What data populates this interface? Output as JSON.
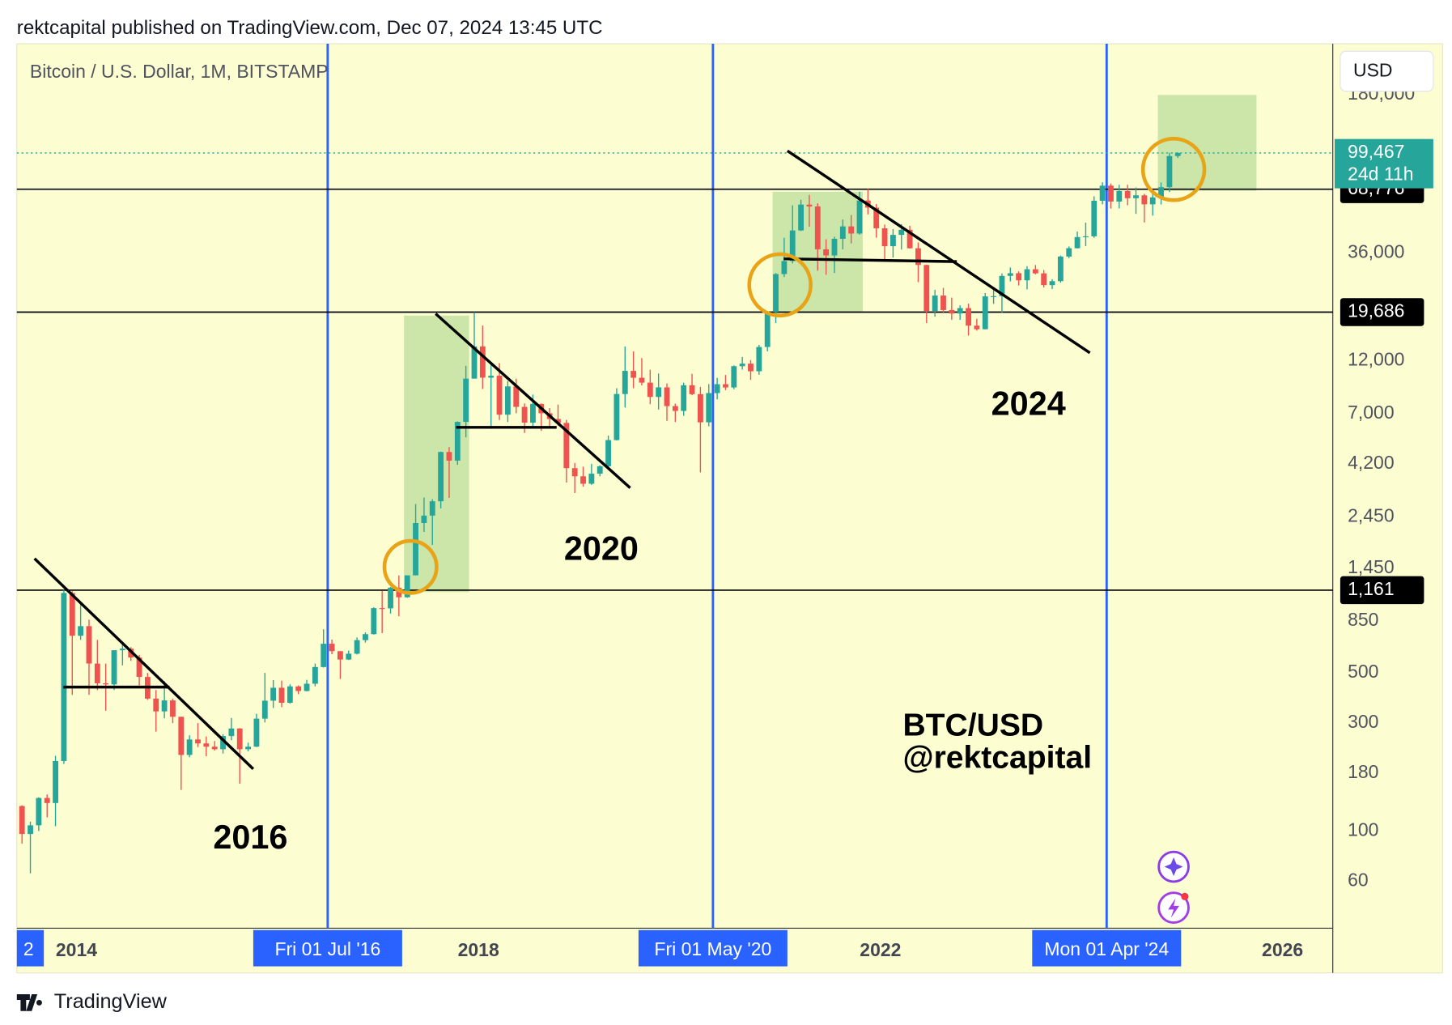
{
  "header": "rektcapital published on TradingView.com, Dec 07, 2024 13:45 UTC",
  "footer": "TradingView",
  "chart_data": {
    "type": "candlestick",
    "title": "Bitcoin / U.S. Dollar, 1M, BITSTAMP",
    "currency": "USD",
    "log_scale": true,
    "up_color": "#26a69a",
    "down_color": "#ef5350",
    "ylim": [
      37.2,
      302300
    ],
    "yticks": [
      {
        "value": 180000,
        "label": "180,000"
      },
      {
        "value": 36000,
        "label": "36,000"
      },
      {
        "value": 12000,
        "label": "12,000"
      },
      {
        "value": 7000,
        "label": "7,000"
      },
      {
        "value": 4200,
        "label": "4,200"
      },
      {
        "value": 2450,
        "label": "2,450"
      },
      {
        "value": 1450,
        "label": "1,450"
      },
      850,
      500,
      300,
      180,
      100,
      60
    ],
    "levels": [
      {
        "value": 68776,
        "label": "68,776"
      },
      {
        "value": 19686,
        "label": "19,686"
      },
      {
        "value": 1161,
        "label": "1,161"
      }
    ],
    "last_price": {
      "value": 99467,
      "label": "99,467",
      "countdown": "24d 11h"
    },
    "xlim": [
      2013.407,
      2026.5
    ],
    "xticks": [
      2014,
      2018,
      2022,
      2026
    ],
    "markers": [
      {
        "value": 2016.5,
        "label": "Fri 01 Jul '16"
      },
      {
        "value": 2020.333,
        "label": "Fri 01 May '20"
      },
      {
        "value": 2024.25,
        "label": "Mon 01 Apr '24"
      }
    ],
    "edge_label": "2",
    "annotations": [
      "2016",
      "2020",
      "2024",
      "BTC/USD",
      "@rektcapital"
    ],
    "x": [
      "2013-06",
      "2013-07",
      "2013-08",
      "2013-09",
      "2013-10",
      "2013-11",
      "2013-12",
      "2014-01",
      "2014-02",
      "2014-03",
      "2014-04",
      "2014-05",
      "2014-06",
      "2014-07",
      "2014-08",
      "2014-09",
      "2014-10",
      "2014-11",
      "2014-12",
      "2015-01",
      "2015-02",
      "2015-03",
      "2015-04",
      "2015-05",
      "2015-06",
      "2015-07",
      "2015-08",
      "2015-09",
      "2015-10",
      "2015-11",
      "2015-12",
      "2016-01",
      "2016-02",
      "2016-03",
      "2016-04",
      "2016-05",
      "2016-06",
      "2016-07",
      "2016-08",
      "2016-09",
      "2016-10",
      "2016-11",
      "2016-12",
      "2017-01",
      "2017-02",
      "2017-03",
      "2017-04",
      "2017-05",
      "2017-06",
      "2017-07",
      "2017-08",
      "2017-09",
      "2017-10",
      "2017-11",
      "2017-12",
      "2018-01",
      "2018-02",
      "2018-03",
      "2018-04",
      "2018-05",
      "2018-06",
      "2018-07",
      "2018-08",
      "2018-09",
      "2018-10",
      "2018-11",
      "2018-12",
      "2019-01",
      "2019-02",
      "2019-03",
      "2019-04",
      "2019-05",
      "2019-06",
      "2019-07",
      "2019-08",
      "2019-09",
      "2019-10",
      "2019-11",
      "2019-12",
      "2020-01",
      "2020-02",
      "2020-03",
      "2020-04",
      "2020-05",
      "2020-06",
      "2020-07",
      "2020-08",
      "2020-09",
      "2020-10",
      "2020-11",
      "2020-12",
      "2021-01",
      "2021-02",
      "2021-03",
      "2021-04",
      "2021-05",
      "2021-06",
      "2021-07",
      "2021-08",
      "2021-09",
      "2021-10",
      "2021-11",
      "2021-12",
      "2022-01",
      "2022-02",
      "2022-03",
      "2022-04",
      "2022-05",
      "2022-06",
      "2022-07",
      "2022-08",
      "2022-09",
      "2022-10",
      "2022-11",
      "2022-12",
      "2023-01",
      "2023-02",
      "2023-03",
      "2023-04",
      "2023-05",
      "2023-06",
      "2023-07",
      "2023-08",
      "2023-09",
      "2023-10",
      "2023-11",
      "2023-12",
      "2024-01",
      "2024-02",
      "2024-03",
      "2024-04",
      "2024-05",
      "2024-06",
      "2024-07",
      "2024-08",
      "2024-09",
      "2024-10",
      "2024-11",
      "2024-12"
    ],
    "ohlc": [
      [
        129,
        130,
        88,
        97
      ],
      [
        97,
        110,
        65,
        106
      ],
      [
        106,
        141,
        100,
        140
      ],
      [
        140,
        145,
        115,
        133
      ],
      [
        133,
        215,
        105,
        204
      ],
      [
        204,
        1163,
        198,
        1128
      ],
      [
        1128,
        1150,
        400,
        730
      ],
      [
        730,
        1020,
        700,
        805
      ],
      [
        805,
        860,
        400,
        550
      ],
      [
        550,
        700,
        420,
        450
      ],
      [
        450,
        550,
        340,
        445
      ],
      [
        445,
        630,
        420,
        630
      ],
      [
        630,
        680,
        540,
        640
      ],
      [
        640,
        650,
        565,
        585
      ],
      [
        585,
        600,
        440,
        480
      ],
      [
        480,
        500,
        380,
        385
      ],
      [
        385,
        420,
        275,
        338
      ],
      [
        338,
        460,
        315,
        378
      ],
      [
        378,
        385,
        300,
        320
      ],
      [
        320,
        320,
        152,
        217
      ],
      [
        217,
        265,
        212,
        254
      ],
      [
        254,
        300,
        235,
        244
      ],
      [
        244,
        262,
        214,
        236
      ],
      [
        236,
        250,
        227,
        230
      ],
      [
        230,
        268,
        220,
        263
      ],
      [
        263,
        316,
        252,
        284
      ],
      [
        284,
        285,
        162,
        230
      ],
      [
        230,
        246,
        225,
        236
      ],
      [
        236,
        330,
        235,
        314
      ],
      [
        314,
        500,
        302,
        377
      ],
      [
        377,
        465,
        350,
        430
      ],
      [
        430,
        462,
        353,
        369
      ],
      [
        369,
        445,
        366,
        436
      ],
      [
        436,
        440,
        403,
        416
      ],
      [
        416,
        466,
        414,
        448
      ],
      [
        448,
        550,
        436,
        531
      ],
      [
        531,
        780,
        528,
        673
      ],
      [
        673,
        702,
        605,
        624
      ],
      [
        624,
        624,
        470,
        573
      ],
      [
        573,
        628,
        570,
        608
      ],
      [
        608,
        718,
        603,
        698
      ],
      [
        698,
        756,
        681,
        742
      ],
      [
        742,
        975,
        739,
        967
      ],
      [
        967,
        1150,
        750,
        965
      ],
      [
        965,
        1200,
        915,
        1190
      ],
      [
        1190,
        1350,
        890,
        1080
      ],
      [
        1080,
        1350,
        1075,
        1350
      ],
      [
        1350,
        2790,
        1350,
        2300
      ],
      [
        2300,
        2980,
        2100,
        2480
      ],
      [
        2480,
        2930,
        1840,
        2870
      ],
      [
        2870,
        4760,
        2670,
        4740
      ],
      [
        4740,
        4980,
        2970,
        4340
      ],
      [
        4340,
        6470,
        4160,
        6440
      ],
      [
        6440,
        11400,
        5500,
        10000
      ],
      [
        10000,
        19666,
        10000,
        13880
      ],
      [
        13880,
        17170,
        9000,
        10100
      ],
      [
        10100,
        11790,
        6000,
        10300
      ],
      [
        10300,
        11700,
        6560,
        6930
      ],
      [
        6930,
        9760,
        6430,
        9240
      ],
      [
        9240,
        9990,
        7030,
        7500
      ],
      [
        7500,
        7770,
        5750,
        6390
      ],
      [
        6390,
        8500,
        6070,
        7730
      ],
      [
        7730,
        7760,
        5880,
        7030
      ],
      [
        7030,
        7410,
        6100,
        6630
      ],
      [
        6630,
        7680,
        6200,
        6370
      ],
      [
        6370,
        6570,
        3470,
        4020
      ],
      [
        4020,
        4240,
        3120,
        3700
      ],
      [
        3700,
        4080,
        3330,
        3430
      ],
      [
        3430,
        4200,
        3390,
        3800
      ],
      [
        3800,
        4140,
        3700,
        4100
      ],
      [
        4100,
        5600,
        4070,
        5350
      ],
      [
        5350,
        9070,
        5330,
        8550
      ],
      [
        8550,
        13880,
        7450,
        10820
      ],
      [
        10820,
        13200,
        9070,
        10090
      ],
      [
        10090,
        12330,
        9330,
        9600
      ],
      [
        9600,
        10950,
        7710,
        8300
      ],
      [
        8300,
        10540,
        7300,
        9150
      ],
      [
        9150,
        9520,
        6510,
        7560
      ],
      [
        7560,
        7750,
        6430,
        7200
      ],
      [
        7200,
        9590,
        6850,
        9350
      ],
      [
        9350,
        10500,
        8450,
        8540
      ],
      [
        8540,
        9190,
        3850,
        6410
      ],
      [
        6410,
        9460,
        6150,
        8630
      ],
      [
        8630,
        10080,
        8100,
        9450
      ],
      [
        9450,
        10380,
        8900,
        9140
      ],
      [
        9140,
        11440,
        8980,
        11350
      ],
      [
        11350,
        12470,
        10960,
        11650
      ],
      [
        11650,
        12080,
        9880,
        10780
      ],
      [
        10780,
        14100,
        10400,
        13800
      ],
      [
        13800,
        19920,
        13200,
        19700
      ],
      [
        19700,
        29300,
        17600,
        28990
      ],
      [
        28990,
        41970,
        28130,
        33100
      ],
      [
        33100,
        58350,
        32300,
        45200
      ],
      [
        45200,
        61800,
        44950,
        58800
      ],
      [
        58800,
        64900,
        47000,
        57700
      ],
      [
        57700,
        59600,
        30000,
        37300
      ],
      [
        37300,
        41300,
        28800,
        35040
      ],
      [
        35040,
        42400,
        29300,
        41500
      ],
      [
        41500,
        50500,
        37300,
        47100
      ],
      [
        47100,
        52900,
        39600,
        43800
      ],
      [
        43800,
        67000,
        43300,
        61300
      ],
      [
        61300,
        69000,
        53200,
        57000
      ],
      [
        57000,
        59100,
        42000,
        46200
      ],
      [
        46200,
        47990,
        32950,
        38500
      ],
      [
        38500,
        45800,
        34300,
        43200
      ],
      [
        43200,
        48200,
        37200,
        45500
      ],
      [
        45500,
        47400,
        37600,
        37700
      ],
      [
        37700,
        40000,
        26700,
        31800
      ],
      [
        31800,
        31900,
        17600,
        19900
      ],
      [
        19900,
        24700,
        18800,
        23300
      ],
      [
        23300,
        25200,
        19600,
        20100
      ],
      [
        20100,
        22800,
        18200,
        19400
      ],
      [
        19400,
        21100,
        18200,
        20500
      ],
      [
        20500,
        21450,
        15500,
        17150
      ],
      [
        17150,
        18390,
        16300,
        16540
      ],
      [
        16540,
        23900,
        16500,
        23100
      ],
      [
        23100,
        25200,
        21400,
        23150
      ],
      [
        23150,
        29200,
        19600,
        28450
      ],
      [
        28450,
        31000,
        26900,
        29250
      ],
      [
        29250,
        29800,
        25800,
        27200
      ],
      [
        27200,
        31400,
        24800,
        30450
      ],
      [
        30450,
        31800,
        28900,
        29200
      ],
      [
        29200,
        30200,
        25300,
        25900
      ],
      [
        25900,
        27500,
        24900,
        26970
      ],
      [
        26970,
        35000,
        26550,
        34650
      ],
      [
        34650,
        38400,
        34100,
        37720
      ],
      [
        37720,
        44700,
        37600,
        42250
      ],
      [
        42250,
        48970,
        38500,
        42580
      ],
      [
        42580,
        64000,
        41900,
        61150
      ],
      [
        61150,
        73790,
        59000,
        71300
      ],
      [
        71300,
        72800,
        56500,
        60650
      ],
      [
        60650,
        71950,
        56550,
        67500
      ],
      [
        67500,
        71950,
        58400,
        62750
      ],
      [
        62750,
        70000,
        53500,
        64600
      ],
      [
        64600,
        65600,
        49000,
        58950
      ],
      [
        58950,
        66500,
        52550,
        63300
      ],
      [
        63300,
        73600,
        58850,
        70200
      ],
      [
        70200,
        99600,
        66800,
        96400
      ],
      [
        96400,
        100000,
        94500,
        99467
      ]
    ]
  }
}
